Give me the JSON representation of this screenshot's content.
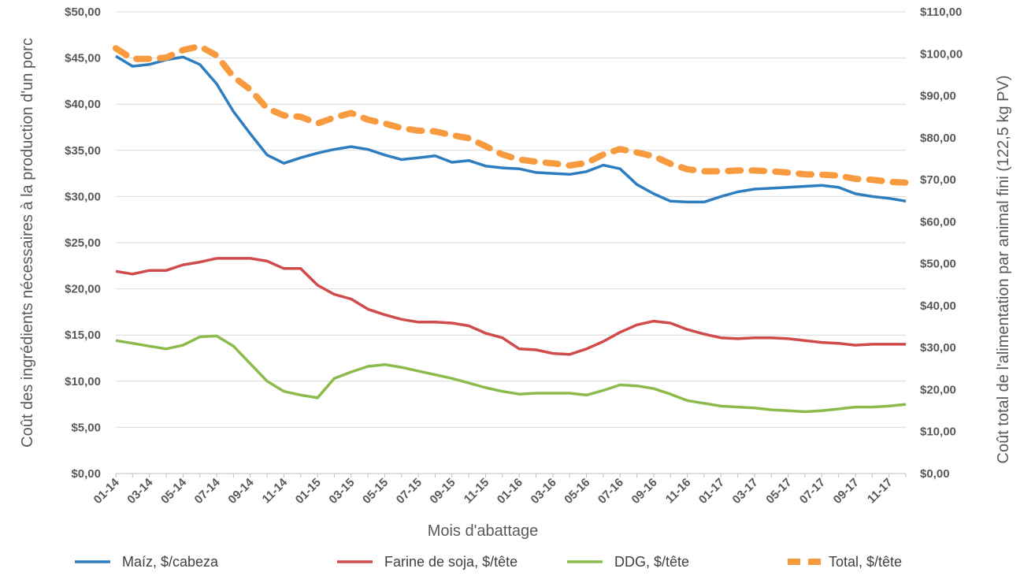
{
  "chart_data": {
    "type": "line",
    "xlabel": "Mois d'abattage",
    "ylabel": "Coût des ingrédients nécessaires à la production d'un porc",
    "y2label": "Coût total de l'alimentation par animal fini (122,5 kg PV)",
    "ylim": [
      0,
      50
    ],
    "y2lim": [
      0,
      110
    ],
    "yticks": [
      "$0,00",
      "$5,00",
      "$10,00",
      "$15,00",
      "$20,00",
      "$25,00",
      "$30,00",
      "$35,00",
      "$40,00",
      "$45,00",
      "$50,00"
    ],
    "y2ticks": [
      "$0,00",
      "$10,00",
      "$20,00",
      "$30,00",
      "$40,00",
      "$50,00",
      "$60,00",
      "$70,00",
      "$80,00",
      "$90,00",
      "$100,00",
      "$110,00"
    ],
    "grid": true,
    "legend_position": "bottom",
    "x": [
      "01-14",
      "02-14",
      "03-14",
      "04-14",
      "05-14",
      "06-14",
      "07-14",
      "08-14",
      "09-14",
      "10-14",
      "11-14",
      "12-14",
      "01-15",
      "02-15",
      "03-15",
      "04-15",
      "05-15",
      "06-15",
      "07-15",
      "08-15",
      "09-15",
      "10-15",
      "11-15",
      "12-15",
      "01-16",
      "02-16",
      "03-16",
      "04-16",
      "05-16",
      "06-16",
      "07-16",
      "08-16",
      "09-16",
      "10-16",
      "11-16",
      "12-16",
      "01-17",
      "02-17",
      "03-17",
      "04-17",
      "05-17",
      "06-17",
      "07-17",
      "08-17",
      "09-17",
      "10-17",
      "11-17",
      "12-17"
    ],
    "xtick_labels": [
      "01-14",
      "03-14",
      "05-14",
      "07-14",
      "09-14",
      "11-14",
      "01-15",
      "03-15",
      "05-15",
      "07-15",
      "09-15",
      "11-15",
      "01-16",
      "03-16",
      "05-16",
      "07-16",
      "09-16",
      "11-16",
      "01-17",
      "03-17",
      "05-17",
      "07-17",
      "09-17",
      "11-17"
    ],
    "series": [
      {
        "name": "Maíz, $/cabeza",
        "axis": "left",
        "color": "#2e7dbf",
        "style": "solid",
        "values": [
          45.2,
          44.1,
          44.3,
          44.8,
          45.1,
          44.3,
          42.2,
          39.2,
          36.8,
          34.5,
          33.6,
          34.2,
          34.7,
          35.1,
          35.4,
          35.1,
          34.5,
          34.0,
          34.2,
          34.4,
          33.7,
          33.9,
          33.3,
          33.1,
          33.0,
          32.6,
          32.5,
          32.4,
          32.7,
          33.4,
          33.0,
          31.3,
          30.3,
          29.5,
          29.4,
          29.4,
          30.0,
          30.5,
          30.8,
          30.9,
          31.0,
          31.1,
          31.2,
          31.0,
          30.3,
          30.0,
          29.8,
          29.5
        ]
      },
      {
        "name": "Farine de soja, $/tête",
        "axis": "left",
        "color": "#d04b4b",
        "style": "solid",
        "values": [
          21.9,
          21.6,
          22.0,
          22.0,
          22.6,
          22.9,
          23.3,
          23.3,
          23.3,
          23.0,
          22.2,
          22.2,
          20.4,
          19.4,
          18.9,
          17.8,
          17.2,
          16.7,
          16.4,
          16.4,
          16.3,
          16.0,
          15.2,
          14.7,
          13.5,
          13.4,
          13.0,
          12.9,
          13.5,
          14.3,
          15.3,
          16.1,
          16.5,
          16.3,
          15.6,
          15.1,
          14.7,
          14.6,
          14.7,
          14.7,
          14.6,
          14.4,
          14.2,
          14.1,
          13.9,
          14.0,
          14.0,
          14.0
        ]
      },
      {
        "name": "DDG, $/tête",
        "axis": "left",
        "color": "#8cbb4c",
        "style": "solid",
        "values": [
          14.4,
          14.1,
          13.8,
          13.5,
          13.9,
          14.8,
          14.9,
          13.8,
          11.9,
          10.0,
          8.9,
          8.5,
          8.2,
          10.3,
          11.0,
          11.6,
          11.8,
          11.5,
          11.1,
          10.7,
          10.3,
          9.8,
          9.3,
          8.9,
          8.6,
          8.7,
          8.7,
          8.7,
          8.5,
          9.0,
          9.6,
          9.5,
          9.2,
          8.6,
          7.9,
          7.6,
          7.3,
          7.2,
          7.1,
          6.9,
          6.8,
          6.7,
          6.8,
          7.0,
          7.2,
          7.2,
          7.3,
          7.5
        ]
      },
      {
        "name": "Total, $/tête",
        "axis": "right",
        "color": "#f79b3e",
        "style": "dashed",
        "values": [
          101.3,
          98.8,
          98.8,
          99.1,
          100.9,
          101.8,
          99.6,
          94.5,
          91.5,
          87.0,
          85.3,
          85.0,
          83.4,
          84.8,
          85.9,
          84.3,
          83.4,
          82.3,
          81.7,
          81.5,
          80.6,
          79.9,
          78.0,
          76.0,
          74.8,
          74.3,
          73.9,
          73.4,
          74.0,
          76.0,
          77.3,
          76.5,
          75.6,
          73.8,
          72.5,
          72.0,
          72.0,
          72.2,
          72.2,
          72.0,
          71.7,
          71.3,
          71.2,
          71.0,
          70.2,
          70.0,
          69.5,
          69.3
        ]
      }
    ]
  }
}
